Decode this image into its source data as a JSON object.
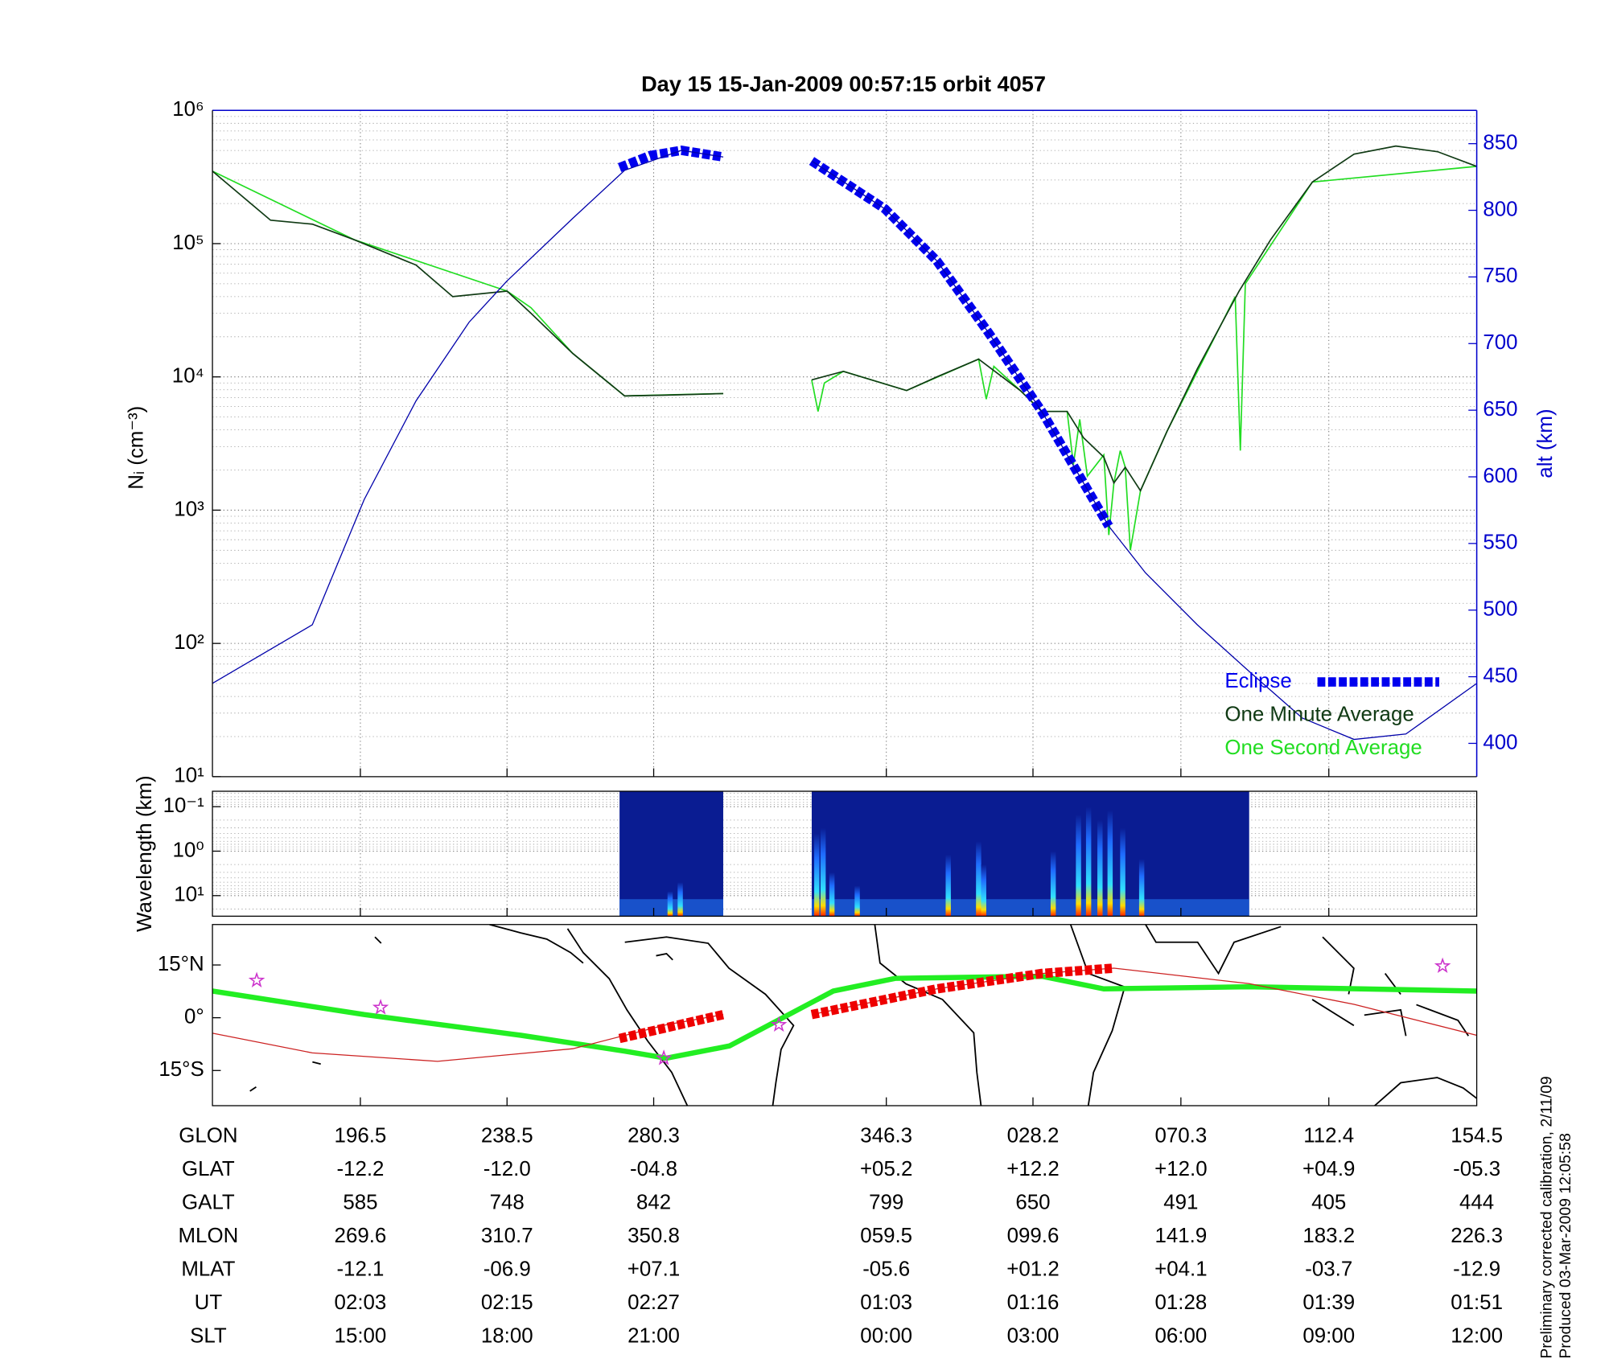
{
  "chart_data": [
    {
      "type": "line",
      "title": "Day 15  15-Jan-2009 00:57:15   orbit 4057",
      "ylabel": "Nᵢ (cm⁻³)",
      "y2label": "alt (km)",
      "xlim": [
        0,
        100
      ],
      "xticks": [
        11.7,
        23.3,
        34.9,
        53.3,
        64.9,
        76.6,
        88.3
      ],
      "ylim": [
        10,
        1000000
      ],
      "yscale": "log",
      "yticks": [
        {
          "value": 10,
          "label": "10¹"
        },
        {
          "value": 100,
          "label": "10²"
        },
        {
          "value": 1000,
          "label": "10³"
        },
        {
          "value": 10000,
          "label": "10⁴"
        },
        {
          "value": 100000,
          "label": "10⁵"
        },
        {
          "value": 1000000,
          "label": "10⁶"
        }
      ],
      "y2lim": [
        375,
        875
      ],
      "y2ticks": [
        400,
        450,
        500,
        550,
        600,
        650,
        700,
        750,
        800,
        850
      ],
      "y2color": "#0000cc",
      "grid": true,
      "legend": "lower right",
      "series": [
        {
          "axis": "y2",
          "color": "#0000aa",
          "linewidth": 1,
          "x": [
            0,
            7.9,
            12.0,
            16.1,
            20.3,
            23.3,
            28.5,
            32.6,
            37.1,
            40.4,
            null,
            47.4,
            53.2,
            57.3,
            61.4,
            65.6,
            70.9,
            73.8,
            77.9,
            82.0,
            86.2,
            90.3,
            94.4,
            100
          ],
          "values": [
            445,
            489,
            583,
            657,
            716,
            747,
            794,
            830,
            845,
            840,
            null,
            837,
            801,
            762,
            708,
            649,
            563,
            528,
            489,
            454,
            419,
            403,
            407,
            445
          ]
        },
        {
          "name": "Eclipse",
          "axis": "y2",
          "color": "#0000ee",
          "linewidth": 9,
          "x": [
            32.2,
            34.6,
            37.1,
            40.4,
            null,
            47.4,
            53.2,
            57.3,
            61.4,
            65.6,
            70.9
          ],
          "values": [
            832,
            841,
            845,
            840,
            null,
            837,
            801,
            762,
            708,
            649,
            563
          ]
        },
        {
          "name": "One Minute Average",
          "color": "#103a14",
          "linewidth": 1.3,
          "x": [
            0,
            4.6,
            7.9,
            11.2,
            16.1,
            19.0,
            23.3,
            25.2,
            28.5,
            32.6,
            35.9,
            40.4,
            null,
            47.4,
            49.9,
            54.9,
            57.3,
            60.6,
            63.9,
            65.6,
            67.6,
            68.9,
            70.5,
            71.3,
            72.2,
            73.4,
            75.5,
            77.9,
            81.2,
            83.7,
            87.0,
            90.3,
            93.6,
            96.9,
            100
          ],
          "values": [
            350000,
            150000,
            140000,
            107000,
            69000,
            40000,
            44000,
            30000,
            15000,
            7200,
            7300,
            7500,
            null,
            9500,
            11000,
            7900,
            10000,
            13600,
            7900,
            5500,
            5500,
            3500,
            2500,
            1600,
            2100,
            1400,
            3900,
            11500,
            44000,
            107000,
            290000,
            470000,
            540000,
            490000,
            380000
          ]
        },
        {
          "name": "One Second Average",
          "color": "#22dd22",
          "linewidth": 1.3,
          "x": [
            0,
            11.2,
            23.3,
            25.2,
            28.5,
            32.6,
            40.4,
            null,
            47.4,
            47.9,
            48.4,
            49.9,
            54.9,
            60.6,
            61.2,
            61.8,
            63.9,
            65.6,
            67.6,
            68.1,
            68.6,
            69.2,
            70.5,
            70.9,
            71.3,
            71.8,
            72.2,
            72.6,
            73.4,
            75.5,
            80.9,
            81.3,
            81.7,
            87.0,
            100
          ],
          "values": [
            350000,
            107000,
            44000,
            33000,
            15000,
            7200,
            7500,
            null,
            9500,
            5500,
            9000,
            11000,
            7900,
            13600,
            6800,
            12000,
            7900,
            5500,
            5500,
            2200,
            4800,
            1800,
            2600,
            650,
            1600,
            2800,
            2100,
            500,
            1400,
            3900,
            40000,
            2800,
            50000,
            290000,
            380000
          ]
        }
      ]
    },
    {
      "type": "spectrogram",
      "ylabel": "Wavelength (km)",
      "xlim": [
        0,
        100
      ],
      "xticks": [
        11.7,
        23.3,
        34.9,
        53.3,
        64.9,
        76.6,
        88.3
      ],
      "ylim": [
        29,
        0.045
      ],
      "yscale": "log",
      "yticks": [
        {
          "value": 0.1,
          "label": "10⁻¹"
        },
        {
          "value": 1,
          "label": "10⁰"
        },
        {
          "value": 10,
          "label": "10¹"
        }
      ],
      "grid": true,
      "color": "#0a1c92",
      "segments": [
        [
          32.2,
          40.4
        ],
        [
          47.4,
          82.0
        ]
      ],
      "x": [
        36.2,
        37.0,
        47.8,
        48.3,
        49.0,
        51.0,
        58.2,
        60.6,
        61.0,
        66.5,
        68.5,
        69.3,
        70.2,
        71.0,
        72.0,
        73.5
      ],
      "values": [
        8,
        5,
        0.4,
        0.3,
        3,
        6,
        1.2,
        0.6,
        2,
        1,
        0.15,
        0.1,
        0.2,
        0.12,
        0.3,
        1.5
      ]
    },
    {
      "type": "map",
      "xlim": [
        0,
        100
      ],
      "xticks": [
        11.7,
        23.3,
        34.9,
        53.3,
        64.9,
        76.6,
        88.3
      ],
      "ylim": [
        -25,
        26.5
      ],
      "yticks": [
        {
          "value": 15,
          "label": "15°N"
        },
        {
          "value": 0,
          "label": "0°"
        },
        {
          "value": -15,
          "label": "15°S"
        }
      ],
      "series": [
        {
          "color": "#22ee22",
          "linewidth": 5,
          "x": [
            0,
            12.0,
            24.4,
            32.6,
            35.9,
            40.9,
            49.1,
            54.0,
            65.6,
            70.5,
            82.0,
            100
          ],
          "values": [
            7.6,
            0.9,
            -5,
            -9.5,
            -11.5,
            -8,
            7.6,
            11.2,
            11.8,
            8.2,
            8.8,
            7.6
          ]
        },
        {
          "color": "#cc2222",
          "linewidth": 1,
          "x": [
            0,
            7.9,
            17.8,
            28.5,
            35.9,
            40.4,
            null,
            47.4,
            57.3,
            65.6,
            71.3,
            82.0,
            90.3,
            100
          ],
          "values": [
            -4.4,
            -10,
            -12.4,
            -8.8,
            -2,
            0.9,
            null,
            0.9,
            8.2,
            12.6,
            14.1,
            9.7,
            3.8,
            -5
          ]
        },
        {
          "color": "#ee0000",
          "linewidth": 9,
          "x": [
            32.2,
            40.4,
            null,
            47.4,
            57.3,
            65.6,
            71.3
          ],
          "values": [
            -5.9,
            0.9,
            null,
            0.9,
            8.2,
            12.6,
            14.1
          ]
        },
        {
          "marker": "star",
          "color": "#cc33cc",
          "x": [
            3.5,
            13.3,
            35.7,
            44.8,
            97.3
          ],
          "values": [
            10.6,
            2.9,
            -11.5,
            -2,
            14.7
          ]
        }
      ]
    }
  ],
  "table": {
    "rows": [
      {
        "label": "GLON",
        "values": [
          "196.5",
          "238.5",
          "280.3",
          "346.3",
          "028.2",
          "070.3",
          "112.4",
          "154.5"
        ]
      },
      {
        "label": "GLAT",
        "values": [
          "-12.2",
          "-12.0",
          "-04.8",
          "+05.2",
          "+12.2",
          "+12.0",
          "+04.9",
          "-05.3"
        ]
      },
      {
        "label": "GALT",
        "values": [
          "585",
          "748",
          "842",
          "799",
          "650",
          "491",
          "405",
          "444"
        ]
      },
      {
        "label": "MLON",
        "values": [
          "269.6",
          "310.7",
          "350.8",
          "059.5",
          "099.6",
          "141.9",
          "183.2",
          "226.3"
        ]
      },
      {
        "label": "MLAT",
        "values": [
          "-12.1",
          "-06.9",
          "+07.1",
          "-05.6",
          "+01.2",
          "+04.1",
          "-03.7",
          "-12.9"
        ]
      },
      {
        "label": "UT",
        "values": [
          "02:03",
          "02:15",
          "02:27",
          "01:03",
          "01:16",
          "01:28",
          "01:39",
          "01:51"
        ]
      },
      {
        "label": "SLT",
        "values": [
          "15:00",
          "18:00",
          "21:00",
          "00:00",
          "03:00",
          "06:00",
          "09:00",
          "12:00"
        ]
      }
    ]
  },
  "notes": [
    "Preliminary corrected calibration, 2/11/09",
    "Produced 03-Mar-2009 12:05:58"
  ]
}
